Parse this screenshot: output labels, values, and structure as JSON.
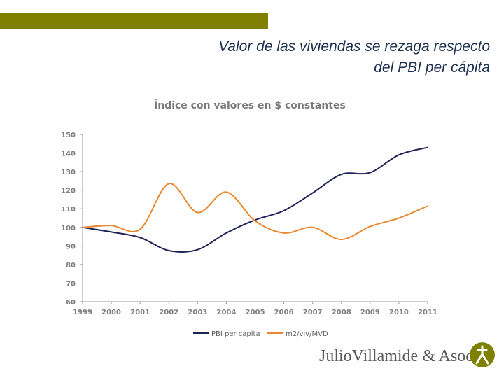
{
  "colors": {
    "accent_bar": "#808000",
    "series_pbi": "#1f2357",
    "series_m2": "#e8892f",
    "logo": "#808000"
  },
  "slide": {
    "title_line1": "Valor de las viviendas se rezaga respecto",
    "title_line2": "del PBI per cápita"
  },
  "logo": {
    "text": "JulioVillamide & Asoc."
  },
  "chart_data": {
    "type": "line",
    "title": "Índice con valores en $ constantes",
    "x": [
      "1999",
      "2000",
      "2001",
      "2002",
      "2003",
      "2004",
      "2005",
      "2006",
      "2007",
      "2008",
      "2009",
      "2010",
      "2011"
    ],
    "yticks": [
      "60",
      "70",
      "80",
      "90",
      "100",
      "110",
      "120",
      "130",
      "140",
      "150"
    ],
    "ylim": [
      60,
      150
    ],
    "legend_position": "bottom",
    "series": [
      {
        "name": "PBI per capita",
        "values": [
          100,
          97.5,
          94.5,
          87.5,
          88,
          97,
          104,
          109,
          118.5,
          128.5,
          129.5,
          139,
          143
        ]
      },
      {
        "name": "m2/viv/MVD",
        "values": [
          100,
          101,
          99,
          123.5,
          108,
          119,
          103.5,
          97,
          100,
          93.5,
          100.5,
          105,
          111.5
        ]
      }
    ]
  }
}
